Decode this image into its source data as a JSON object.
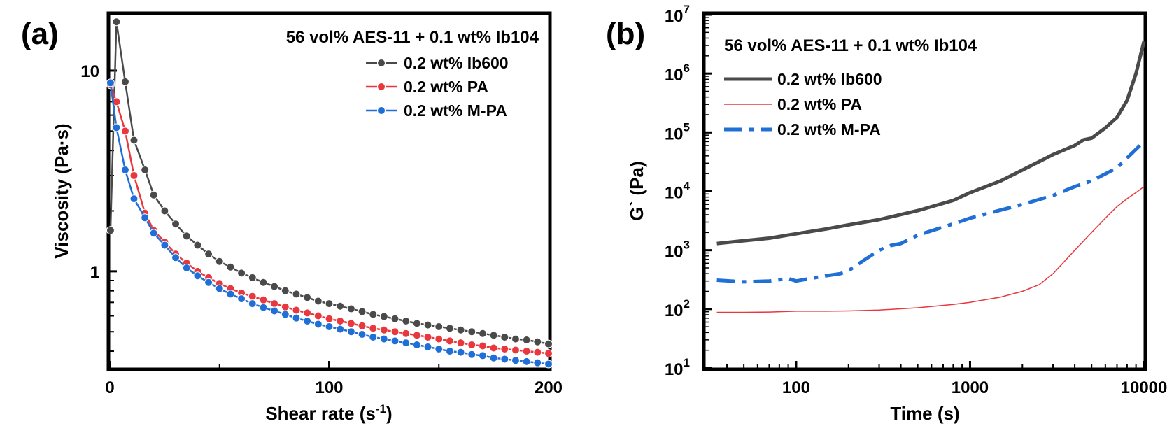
{
  "chart_data": [
    {
      "type": "line",
      "panel_label": "(a)",
      "title": "56 vol% AES-11 + 0.1 wt% Ib104",
      "xlabel": "Shear rate (s",
      "xlabel_sup": "-1",
      "xlabel_tail": ")",
      "ylabel": "Viscosity (Pa·s)",
      "xscale": "linear",
      "yscale": "log",
      "xlim": [
        0,
        200
      ],
      "ylim": [
        0.33,
        19
      ],
      "xticks": [
        0,
        100,
        200
      ],
      "xtick_labels": [
        "0",
        "100",
        "200"
      ],
      "yticks": [
        1,
        10
      ],
      "ytick_labels": [
        "1",
        "10"
      ],
      "legend_position": "top-right",
      "x": [
        0.3,
        3,
        7,
        11,
        16,
        20,
        25,
        30,
        35,
        40,
        45,
        50,
        55,
        60,
        65,
        70,
        75,
        80,
        85,
        90,
        95,
        100,
        105,
        110,
        115,
        120,
        125,
        130,
        135,
        140,
        145,
        150,
        155,
        160,
        165,
        170,
        175,
        180,
        185,
        190,
        195,
        200
      ],
      "series": [
        {
          "name": "0.2 wt% Ib600",
          "color": "#4a4a4a",
          "values": [
            1.6,
            17.5,
            8.8,
            4.5,
            3.2,
            2.4,
            2.0,
            1.72,
            1.5,
            1.35,
            1.22,
            1.12,
            1.05,
            0.98,
            0.93,
            0.88,
            0.84,
            0.8,
            0.77,
            0.74,
            0.71,
            0.69,
            0.67,
            0.65,
            0.63,
            0.61,
            0.595,
            0.58,
            0.565,
            0.55,
            0.54,
            0.53,
            0.52,
            0.51,
            0.5,
            0.49,
            0.48,
            0.47,
            0.46,
            0.455,
            0.445,
            0.435
          ]
        },
        {
          "name": "0.2 wt% PA",
          "color": "#e8383d",
          "values": [
            8.5,
            7.0,
            5.0,
            3.0,
            1.95,
            1.6,
            1.4,
            1.22,
            1.1,
            1.0,
            0.93,
            0.87,
            0.82,
            0.78,
            0.75,
            0.72,
            0.69,
            0.665,
            0.64,
            0.62,
            0.6,
            0.58,
            0.565,
            0.55,
            0.535,
            0.52,
            0.51,
            0.5,
            0.49,
            0.48,
            0.47,
            0.46,
            0.45,
            0.44,
            0.43,
            0.425,
            0.415,
            0.41,
            0.405,
            0.4,
            0.395,
            0.39
          ]
        },
        {
          "name": "0.2 wt% M-PA",
          "color": "#1f6fd6",
          "values": [
            8.7,
            5.2,
            3.2,
            2.3,
            1.85,
            1.55,
            1.35,
            1.17,
            1.04,
            0.95,
            0.88,
            0.82,
            0.77,
            0.73,
            0.69,
            0.66,
            0.635,
            0.61,
            0.585,
            0.565,
            0.545,
            0.53,
            0.515,
            0.5,
            0.485,
            0.47,
            0.46,
            0.45,
            0.44,
            0.43,
            0.42,
            0.41,
            0.4,
            0.395,
            0.385,
            0.38,
            0.37,
            0.365,
            0.36,
            0.355,
            0.35,
            0.345
          ]
        }
      ]
    },
    {
      "type": "line",
      "panel_label": "(b)",
      "title": "56 vol% AES-11 + 0.1 wt% Ib104",
      "xlabel": "Time (s)",
      "ylabel": "G` (Pa)",
      "xscale": "log",
      "yscale": "log",
      "xlim": [
        30,
        10000
      ],
      "ylim": [
        10,
        10000000
      ],
      "xticks": [
        100,
        1000,
        10000
      ],
      "xtick_labels": [
        "100",
        "1000",
        "10000"
      ],
      "yticks": [
        10,
        100,
        1000,
        10000,
        100000,
        1000000,
        10000000
      ],
      "ytick_labels": [
        {
          "base": "10",
          "exp": "1"
        },
        {
          "base": "10",
          "exp": "2"
        },
        {
          "base": "10",
          "exp": "3"
        },
        {
          "base": "10",
          "exp": "4"
        },
        {
          "base": "10",
          "exp": "5"
        },
        {
          "base": "10",
          "exp": "6"
        },
        {
          "base": "10",
          "exp": "7"
        }
      ],
      "legend_position": "top-left",
      "series": [
        {
          "name": "0.2 wt% Ib600",
          "color": "#4a4a4a",
          "style": "solid-thick",
          "x": [
            35,
            50,
            70,
            100,
            150,
            200,
            300,
            500,
            800,
            1000,
            1500,
            2000,
            2500,
            3000,
            4000,
            4500,
            5000,
            6000,
            7000,
            8000,
            9000,
            10000
          ],
          "values": [
            1300,
            1450,
            1600,
            1900,
            2300,
            2700,
            3300,
            4700,
            7000,
            9500,
            15000,
            23000,
            32000,
            42000,
            60000,
            75000,
            80000,
            120000,
            180000,
            350000,
            1000000,
            3500000
          ]
        },
        {
          "name": "0.2 wt% PA",
          "color": "#e8383d",
          "style": "solid-thin",
          "x": [
            35,
            50,
            70,
            100,
            150,
            200,
            300,
            500,
            800,
            1000,
            1500,
            2000,
            2500,
            3000,
            3500,
            4000,
            5000,
            6000,
            7000,
            8000,
            9000,
            10000
          ],
          "values": [
            88,
            88,
            89,
            92,
            92,
            93,
            96,
            105,
            120,
            130,
            160,
            200,
            260,
            400,
            650,
            1000,
            2000,
            3500,
            5500,
            7500,
            9500,
            12000
          ]
        },
        {
          "name": "0.2 wt% M-PA",
          "color": "#1f6fd6",
          "style": "dash-dot",
          "x": [
            35,
            50,
            70,
            90,
            100,
            150,
            180,
            200,
            250,
            300,
            350,
            400,
            500,
            800,
            1000,
            1500,
            2000,
            3000,
            4000,
            5000,
            7000,
            10000
          ],
          "values": [
            310,
            290,
            300,
            330,
            300,
            370,
            400,
            450,
            700,
            1000,
            1200,
            1300,
            1800,
            2800,
            3500,
            4800,
            6000,
            8500,
            12000,
            15000,
            25000,
            70000
          ]
        }
      ]
    }
  ]
}
